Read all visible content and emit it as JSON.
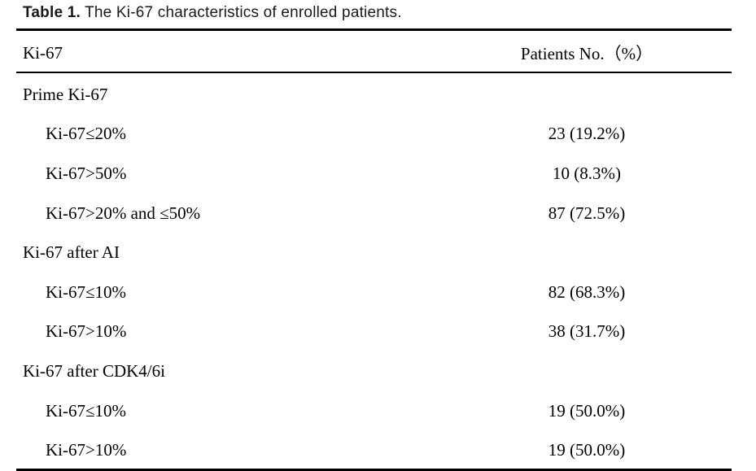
{
  "caption": {
    "label_bold": "Table 1.",
    "label_rest": " The Ki-67 characteristics of enrolled patients."
  },
  "table": {
    "header": {
      "col1": "Ki-67",
      "col2": "Patients No.（%）"
    },
    "rows": [
      {
        "label": "Prime Ki-67",
        "value": "",
        "indent": false
      },
      {
        "label": "Ki-67≤20%",
        "value": "23 (19.2%)",
        "indent": true
      },
      {
        "label": "Ki-67>50%",
        "value": "10 (8.3%)",
        "indent": true
      },
      {
        "label": "Ki-67>20% and ≤50%",
        "value": "87 (72.5%)",
        "indent": true
      },
      {
        "label": "Ki-67 after AI",
        "value": "",
        "indent": false
      },
      {
        "label": "Ki-67≤10%",
        "value": "82 (68.3%)",
        "indent": true
      },
      {
        "label": "Ki-67>10%",
        "value": "38 (31.7%)",
        "indent": true
      },
      {
        "label": "Ki-67 after CDK4/6i",
        "value": "",
        "indent": false
      },
      {
        "label": "Ki-67≤10%",
        "value": "19 (50.0%)",
        "indent": true
      },
      {
        "label": "Ki-67>10%",
        "value": "19 (50.0%)",
        "indent": true
      }
    ]
  },
  "colors": {
    "background": "#ffffff",
    "text": "#000000",
    "rule": "#000000"
  }
}
